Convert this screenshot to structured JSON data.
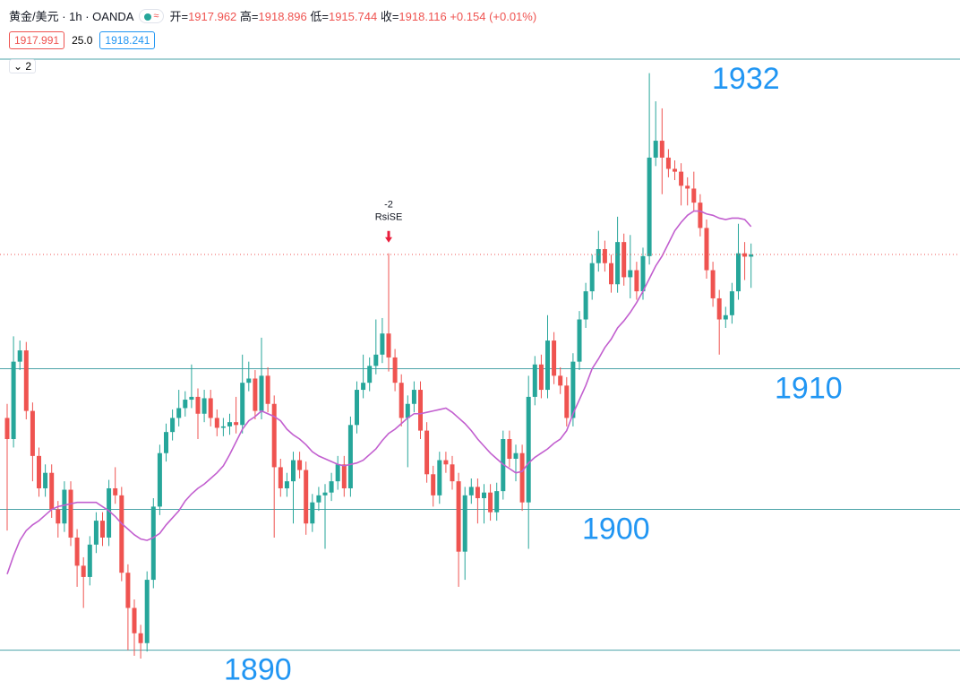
{
  "chart_data": {
    "type": "candlestick",
    "symbol": "黄金/美元 · 1h · OANDA",
    "ohlc_labels": {
      "open": "开=",
      "high": "高=",
      "low": "低=",
      "close": "收="
    },
    "change": "+0.154",
    "change_pct": "(+0.01%)",
    "bid": "1917.991",
    "spread": "25.0",
    "ask": "1918.241",
    "indicator_count": 2,
    "signal": {
      "value": -2,
      "name": "RsiSE"
    },
    "ylim": [
      1886.6,
      1936.2
    ],
    "up_color": "#26a69a",
    "down_color": "#ef5350",
    "ma_color": "#c25fcf",
    "level_color": "#2196f3",
    "levels": [
      1932,
      1910,
      1900,
      1890
    ],
    "open": [
      1906.5,
      1905.0,
      1910.5,
      1911.3,
      1907.0,
      1903.8,
      1901.5,
      1902.6,
      1900.0,
      1899.0,
      1901.4,
      1898.0,
      1896.0,
      1895.2,
      1897.5,
      1899.2,
      1898.0,
      1901.5,
      1901.0,
      1895.5,
      1893.0,
      1891.2,
      1890.5,
      1895.0,
      1900.2,
      1904.0,
      1905.5,
      1906.5,
      1907.2,
      1907.8,
      1908.0,
      1906.8,
      1907.9,
      1906.5,
      1905.8,
      1905.9,
      1906.2,
      1906.0,
      1909.0,
      1909.3,
      1907.0,
      1909.5,
      1907.5,
      1903.0,
      1901.5,
      1902.0,
      1903.5,
      1902.8,
      1899.0,
      1900.5,
      1901.0,
      1901.2,
      1902.0,
      1903.2,
      1901.5,
      1906.0,
      1908.5,
      1909.0,
      1910.2,
      1911.0,
      1912.5,
      1910.8,
      1909.0,
      1906.5,
      1907.5,
      1908.5,
      1905.6,
      1902.5,
      1901.0,
      1903.5,
      1903.2,
      1902.0,
      1897.0,
      1901.0,
      1901.6,
      1900.8,
      1901.2,
      1899.8,
      1901.3,
      1905.0,
      1903.6,
      1904.0,
      1900.5,
      1908.0,
      1910.3,
      1908.5,
      1912.0,
      1909.5,
      1908.8,
      1906.5,
      1910.5,
      1913.5,
      1915.5,
      1917.5,
      1918.5,
      1917.5,
      1916.0,
      1919.0,
      1916.5,
      1917.0,
      1915.5,
      1918.0,
      1925.0,
      1926.2,
      1925.0,
      1924.2,
      1924.0,
      1923.0,
      1922.8,
      1921.8,
      1920.0,
      1917.0,
      1915.0,
      1913.5,
      1913.8,
      1915.5,
      1918.2,
      1917.962
    ],
    "high": [
      1907.5,
      1912.3,
      1912.0,
      1911.9,
      1907.6,
      1904.4,
      1903.2,
      1903.2,
      1900.6,
      1902.0,
      1902.0,
      1898.6,
      1896.6,
      1898.1,
      1899.8,
      1899.8,
      1902.1,
      1903.0,
      1901.6,
      1896.1,
      1893.6,
      1891.8,
      1895.6,
      1900.8,
      1904.6,
      1906.1,
      1907.1,
      1908.5,
      1908.4,
      1910.3,
      1908.6,
      1908.5,
      1908.5,
      1907.1,
      1906.5,
      1906.8,
      1908.0,
      1911.0,
      1910.5,
      1909.9,
      1912.2,
      1910.1,
      1908.1,
      1903.6,
      1902.6,
      1904.1,
      1904.1,
      1903.4,
      1901.1,
      1901.6,
      1901.8,
      1902.6,
      1903.8,
      1903.8,
      1906.6,
      1909.1,
      1911.0,
      1910.8,
      1913.5,
      1913.6,
      1918.2,
      1911.4,
      1909.6,
      1908.1,
      1909.1,
      1909.1,
      1906.2,
      1903.1,
      1904.1,
      1904.1,
      1903.8,
      1902.6,
      1901.6,
      1902.2,
      1902.2,
      1901.8,
      1901.8,
      1901.9,
      1905.6,
      1905.6,
      1904.6,
      1904.6,
      1909.5,
      1910.9,
      1911.0,
      1913.8,
      1912.6,
      1910.1,
      1909.4,
      1911.1,
      1914.1,
      1916.1,
      1918.1,
      1919.8,
      1919.1,
      1918.1,
      1920.8,
      1919.6,
      1919.5,
      1917.6,
      1918.6,
      1931.0,
      1929.0,
      1928.5,
      1925.6,
      1924.8,
      1924.6,
      1923.6,
      1924.0,
      1922.4,
      1920.6,
      1917.6,
      1915.6,
      1914.4,
      1916.1,
      1920.3,
      1919.0,
      1918.896
    ],
    "low": [
      1898.5,
      1904.4,
      1909.9,
      1906.4,
      1902.0,
      1900.9,
      1900.9,
      1899.4,
      1898.0,
      1898.4,
      1897.4,
      1894.5,
      1893.0,
      1894.6,
      1896.9,
      1897.4,
      1897.4,
      1900.4,
      1894.9,
      1890.0,
      1889.6,
      1889.4,
      1889.9,
      1894.4,
      1899.6,
      1903.4,
      1904.9,
      1905.9,
      1906.6,
      1907.2,
      1905.0,
      1906.2,
      1905.9,
      1905.2,
      1905.2,
      1905.3,
      1905.4,
      1905.4,
      1908.4,
      1906.4,
      1906.4,
      1906.9,
      1898.0,
      1900.9,
      1900.9,
      1899.0,
      1902.2,
      1898.2,
      1898.4,
      1899.9,
      1897.2,
      1900.6,
      1901.4,
      1900.9,
      1900.9,
      1905.4,
      1907.9,
      1908.4,
      1909.6,
      1910.4,
      1909.8,
      1908.4,
      1905.9,
      1903.0,
      1906.9,
      1905.0,
      1901.9,
      1900.2,
      1900.4,
      1902.6,
      1901.4,
      1894.5,
      1895.0,
      1900.4,
      1899.0,
      1899.0,
      1899.2,
      1899.2,
      1900.7,
      1903.0,
      1902.0,
      1899.9,
      1897.2,
      1907.4,
      1907.9,
      1907.9,
      1908.9,
      1908.2,
      1905.9,
      1905.9,
      1909.9,
      1912.9,
      1914.9,
      1916.9,
      1916.9,
      1915.4,
      1915.4,
      1915.9,
      1915.0,
      1914.9,
      1914.9,
      1917.4,
      1924.4,
      1922.4,
      1923.6,
      1923.4,
      1921.6,
      1921.6,
      1921.2,
      1919.4,
      1916.4,
      1914.4,
      1911.0,
      1912.9,
      1913.2,
      1914.9,
      1916.3,
      1915.744
    ],
    "close": [
      1905.0,
      1910.5,
      1911.3,
      1907.0,
      1903.8,
      1901.5,
      1902.6,
      1900.0,
      1899.0,
      1901.4,
      1898.0,
      1896.0,
      1895.2,
      1897.5,
      1899.2,
      1898.0,
      1901.5,
      1901.0,
      1895.5,
      1893.0,
      1891.2,
      1890.5,
      1895.0,
      1900.2,
      1904.0,
      1905.5,
      1906.5,
      1907.2,
      1907.8,
      1908.0,
      1906.8,
      1907.9,
      1906.5,
      1905.8,
      1905.9,
      1906.2,
      1906.0,
      1909.0,
      1909.3,
      1907.0,
      1909.5,
      1907.5,
      1903.0,
      1901.5,
      1902.0,
      1903.5,
      1902.8,
      1899.0,
      1900.5,
      1901.0,
      1901.2,
      1902.0,
      1903.2,
      1901.5,
      1906.0,
      1908.5,
      1909.0,
      1910.2,
      1911.0,
      1912.5,
      1910.8,
      1909.0,
      1906.5,
      1907.5,
      1908.5,
      1905.6,
      1902.5,
      1901.0,
      1903.5,
      1903.2,
      1902.0,
      1897.0,
      1901.0,
      1901.6,
      1900.8,
      1901.2,
      1899.8,
      1901.3,
      1905.0,
      1903.6,
      1904.0,
      1900.5,
      1908.0,
      1910.3,
      1908.5,
      1912.0,
      1909.5,
      1908.8,
      1906.5,
      1910.5,
      1913.5,
      1915.5,
      1917.5,
      1918.5,
      1917.5,
      1916.0,
      1919.0,
      1916.5,
      1917.0,
      1915.5,
      1918.0,
      1925.0,
      1926.2,
      1925.0,
      1924.2,
      1924.0,
      1923.0,
      1922.8,
      1921.8,
      1920.0,
      1917.0,
      1915.0,
      1913.5,
      1913.8,
      1915.5,
      1918.2,
      1917.962,
      1918.116
    ],
    "moving_average": [
      1895.4,
      1896.7,
      1897.8,
      1898.5,
      1898.9,
      1899.2,
      1899.6,
      1900.0,
      1900.2,
      1900.3,
      1900.4,
      1900.5,
      1900.5,
      1900.5,
      1900.5,
      1900.2,
      1899.9,
      1899.5,
      1899.0,
      1898.6,
      1898.2,
      1897.9,
      1897.8,
      1898.0,
      1898.3,
      1898.9,
      1899.4,
      1899.9,
      1900.6,
      1901.1,
      1901.5,
      1901.8,
      1902.2,
      1902.6,
      1903.1,
      1903.9,
      1904.8,
      1905.7,
      1906.3,
      1906.6,
      1907.0,
      1906.8,
      1906.6,
      1906.3,
      1905.7,
      1905.3,
      1905.0,
      1904.6,
      1904.1,
      1903.8,
      1903.6,
      1903.4,
      1903.2,
      1903.1,
      1903.2,
      1903.3,
      1903.5,
      1903.9,
      1904.3,
      1904.9,
      1905.4,
      1905.7,
      1906.1,
      1906.5,
      1906.8,
      1906.8,
      1906.9,
      1907.0,
      1907.1,
      1907.2,
      1906.9,
      1906.5,
      1906.1,
      1905.6,
      1905.0,
      1904.5,
      1904.0,
      1903.6,
      1903.2,
      1902.9,
      1902.6,
      1902.7,
      1903.3,
      1903.7,
      1904.0,
      1904.3,
      1904.7,
      1905.0,
      1905.6,
      1906.8,
      1907.8,
      1908.8,
      1910.0,
      1910.7,
      1911.5,
      1912.1,
      1912.9,
      1913.4,
      1914.0,
      1914.7,
      1915.5,
      1916.4,
      1917.3,
      1918.0,
      1918.9,
      1919.8,
      1920.4,
      1920.9,
      1921.2,
      1921.2,
      1921.0,
      1920.9,
      1920.7,
      1920.6,
      1920.7,
      1920.7,
      1920.6,
      1920.1
    ]
  }
}
